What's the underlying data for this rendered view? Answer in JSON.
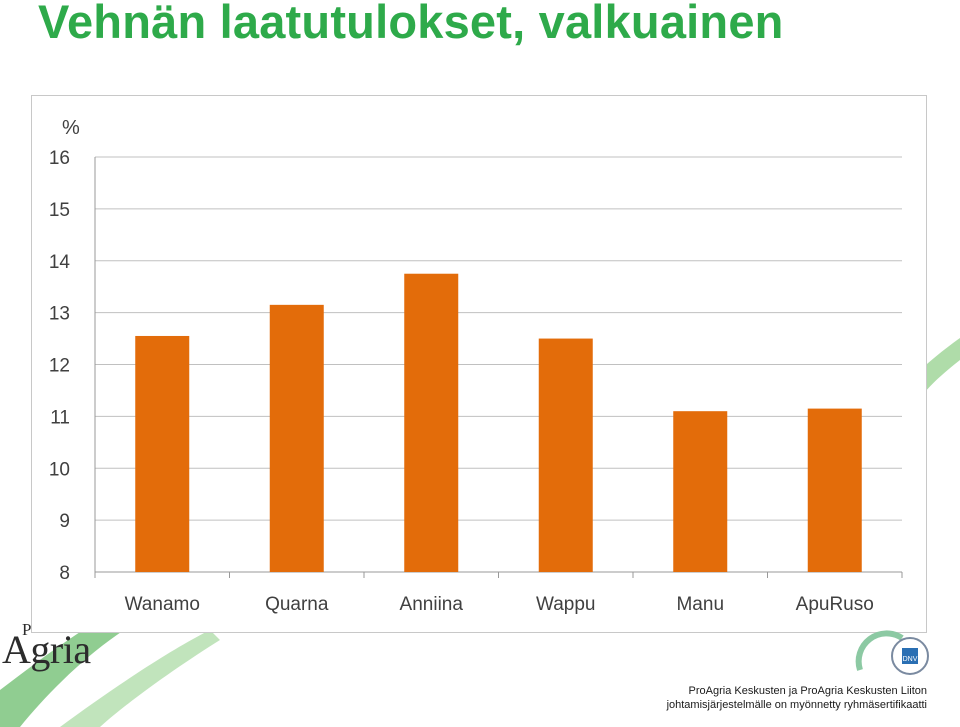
{
  "slide": {
    "title": "Vehnän laatutulokset, valkuainen",
    "logo_small": "P",
    "logo_word": "Agria",
    "footer_line1": "ProAgria Keskusten ja ProAgria Keskusten Liiton",
    "footer_line2": "johtamisjärjestelmälle on myönnetty ryhmäsertifikaatti",
    "cert_label": "DNV"
  },
  "colors": {
    "title": "#2eaa4a",
    "bar": "#e36c0a",
    "grid": "#c0c0c0",
    "swoosh": "#7cc47e"
  },
  "chart_data": {
    "type": "bar",
    "categories": [
      "Wanamo",
      "Quarna",
      "Anniina",
      "Wappu",
      "Manu",
      "ApuRuso"
    ],
    "values": [
      12.55,
      13.15,
      13.75,
      12.5,
      11.1,
      11.15
    ],
    "title": "",
    "xlabel": "",
    "ylabel": "%",
    "ylim": [
      8,
      16
    ],
    "yticks": [
      8,
      9,
      10,
      11,
      12,
      13,
      14,
      15,
      16
    ],
    "grid": true,
    "legend": "none"
  }
}
